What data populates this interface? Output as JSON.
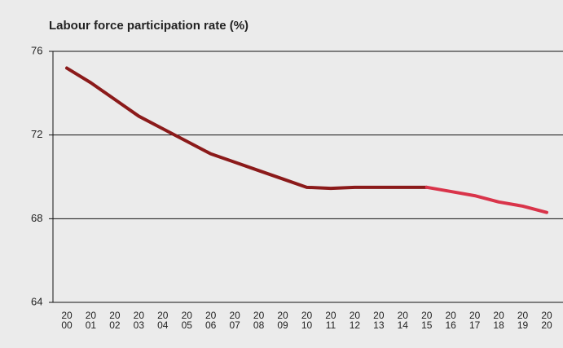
{
  "chart_data": {
    "type": "line",
    "title": "Labour force participation rate (%)",
    "categories": [
      "2000",
      "2001",
      "2002",
      "2003",
      "2004",
      "2005",
      "2006",
      "2007",
      "2008",
      "2009",
      "2010",
      "2011",
      "2012",
      "2013",
      "2014",
      "2015",
      "2016",
      "2017",
      "2018",
      "2019",
      "2020"
    ],
    "series": [
      {
        "color": "#8b1a1a",
        "values": [
          75.2,
          74.5,
          73.7,
          72.9,
          72.3,
          71.7,
          71.1,
          70.7,
          70.3,
          69.9,
          69.5,
          69.45,
          69.5,
          69.5,
          69.5,
          69.5,
          null,
          null,
          null,
          null,
          null
        ]
      },
      {
        "color": "#d9344a",
        "values": [
          null,
          null,
          null,
          null,
          null,
          null,
          null,
          null,
          null,
          null,
          null,
          null,
          null,
          null,
          null,
          69.5,
          69.3,
          69.1,
          68.8,
          68.6,
          68.3
        ]
      }
    ],
    "ylim": [
      64,
      76
    ],
    "yticks": [
      64,
      68,
      72,
      76
    ],
    "grid": true
  }
}
